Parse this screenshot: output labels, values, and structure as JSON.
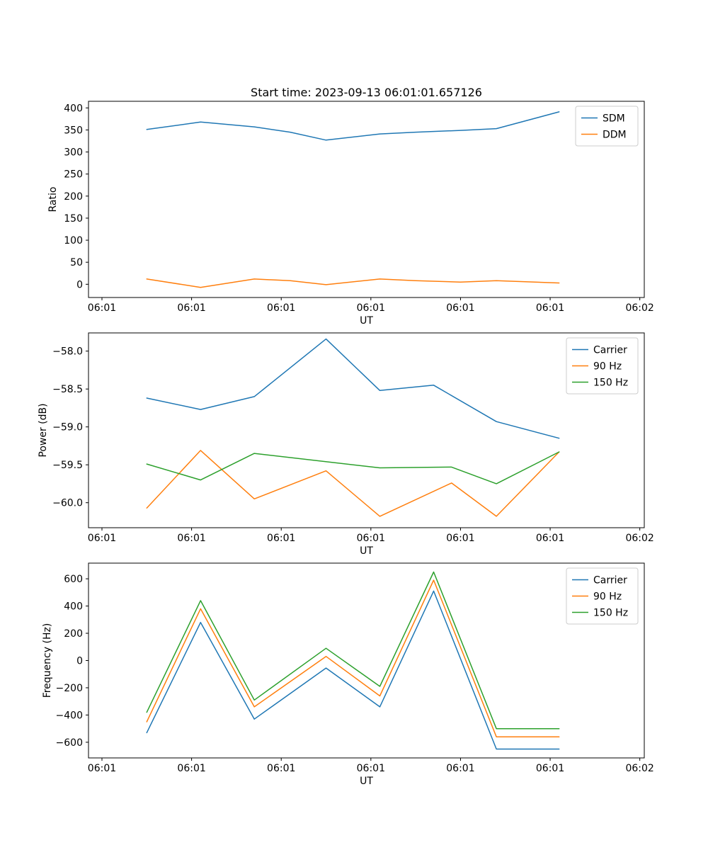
{
  "figure": {
    "title": "Start time: 2023-09-13 06:01:01.657126",
    "background": "#ffffff"
  },
  "chart_data": [
    {
      "id": "ratio",
      "type": "line",
      "title": "",
      "xlabel": "UT",
      "ylabel": "Ratio",
      "xlim": [
        -1.5,
        60.5
      ],
      "ylim": [
        -30,
        415
      ],
      "xticks": [
        0,
        10,
        20,
        30,
        40,
        50,
        60
      ],
      "xtick_labels": [
        "06:01",
        "06:01",
        "06:01",
        "06:01",
        "06:01",
        "06:01",
        "06:02"
      ],
      "yticks": [
        0,
        50,
        100,
        150,
        200,
        250,
        300,
        350,
        400
      ],
      "ytick_labels": [
        "0",
        "50",
        "100",
        "150",
        "200",
        "250",
        "300",
        "350",
        "400"
      ],
      "grid": false,
      "legend_position": "top-right",
      "series": [
        {
          "name": "SDM",
          "color": "#1f77b4",
          "x": [
            5,
            11,
            17,
            21,
            25,
            31,
            35,
            40,
            44,
            51
          ],
          "y": [
            351,
            368,
            357,
            345,
            327,
            341,
            345,
            349,
            353,
            391
          ]
        },
        {
          "name": "DDM",
          "color": "#ff7f0e",
          "x": [
            5,
            11,
            17,
            21,
            25,
            31,
            35,
            40,
            44,
            51
          ],
          "y": [
            12,
            -7,
            12,
            8,
            -1,
            12,
            8,
            5,
            8,
            3
          ]
        }
      ]
    },
    {
      "id": "power",
      "type": "line",
      "title": "",
      "xlabel": "UT",
      "ylabel": "Power (dB)",
      "xlim": [
        -1.5,
        60.5
      ],
      "ylim": [
        -60.33,
        -57.76
      ],
      "xticks": [
        0,
        10,
        20,
        30,
        40,
        50,
        60
      ],
      "xtick_labels": [
        "06:01",
        "06:01",
        "06:01",
        "06:01",
        "06:01",
        "06:01",
        "06:02"
      ],
      "yticks": [
        -60.0,
        -59.5,
        -59.0,
        -58.5,
        -58.0
      ],
      "ytick_labels": [
        "−60.0",
        "−59.5",
        "−59.0",
        "−58.5",
        "−58.0"
      ],
      "grid": false,
      "legend_position": "top-right",
      "series": [
        {
          "name": "Carrier",
          "color": "#1f77b4",
          "x": [
            5,
            11,
            17,
            25,
            31,
            37,
            44,
            51
          ],
          "y": [
            -58.62,
            -58.77,
            -58.6,
            -57.84,
            -58.52,
            -58.45,
            -58.93,
            -59.15
          ]
        },
        {
          "name": "90 Hz",
          "color": "#ff7f0e",
          "x": [
            5,
            11,
            17,
            25,
            31,
            39,
            44,
            51
          ],
          "y": [
            -60.07,
            -59.31,
            -59.95,
            -59.58,
            -60.18,
            -59.74,
            -60.18,
            -59.33
          ]
        },
        {
          "name": "150 Hz",
          "color": "#2ca02c",
          "x": [
            5,
            11,
            17,
            31,
            39,
            44,
            51
          ],
          "y": [
            -59.49,
            -59.7,
            -59.35,
            -59.54,
            -59.53,
            -59.75,
            -59.33
          ]
        }
      ]
    },
    {
      "id": "frequency",
      "type": "line",
      "title": "",
      "xlabel": "UT",
      "ylabel": "Frequency (Hz)",
      "xlim": [
        -1.5,
        60.5
      ],
      "ylim": [
        -715,
        715
      ],
      "xticks": [
        0,
        10,
        20,
        30,
        40,
        50,
        60
      ],
      "xtick_labels": [
        "06:01",
        "06:01",
        "06:01",
        "06:01",
        "06:01",
        "06:01",
        "06:02"
      ],
      "yticks": [
        -600,
        -400,
        -200,
        0,
        200,
        400,
        600
      ],
      "ytick_labels": [
        "−600",
        "−400",
        "−200",
        "0",
        "200",
        "400",
        "600"
      ],
      "grid": false,
      "legend_position": "top-right",
      "series": [
        {
          "name": "Carrier",
          "color": "#1f77b4",
          "x": [
            5,
            11,
            17,
            25,
            31,
            37,
            44,
            51
          ],
          "y": [
            -530,
            280,
            -430,
            -55,
            -340,
            510,
            -650,
            -650
          ]
        },
        {
          "name": "90 Hz",
          "color": "#ff7f0e",
          "x": [
            5,
            11,
            17,
            25,
            31,
            37,
            44,
            51
          ],
          "y": [
            -450,
            380,
            -340,
            30,
            -260,
            590,
            -560,
            -560
          ]
        },
        {
          "name": "150 Hz",
          "color": "#2ca02c",
          "x": [
            5,
            11,
            17,
            25,
            31,
            37,
            44,
            51
          ],
          "y": [
            -380,
            440,
            -290,
            90,
            -190,
            650,
            -500,
            -500
          ]
        }
      ]
    }
  ]
}
